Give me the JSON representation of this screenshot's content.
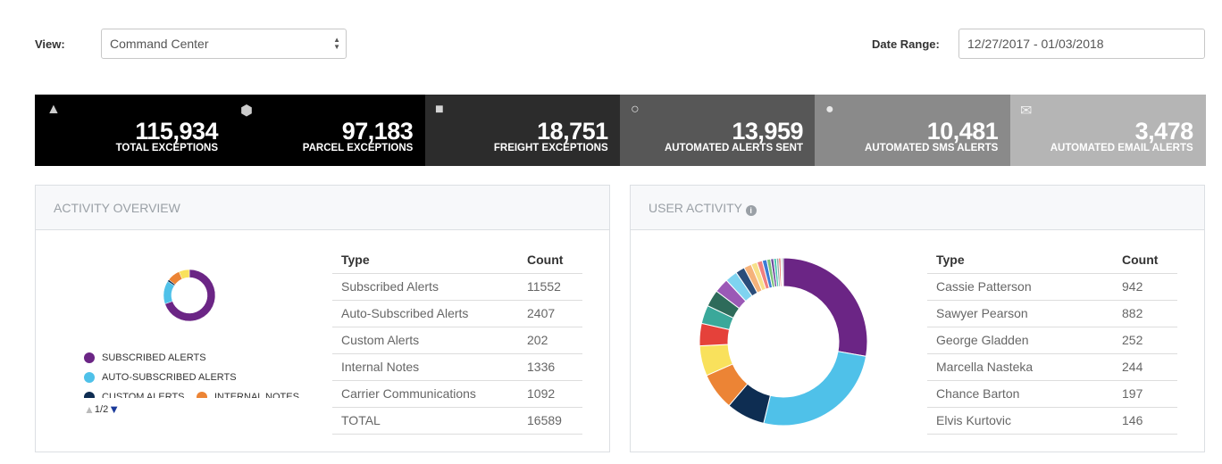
{
  "filters": {
    "view_label": "View:",
    "view_value": "Command Center",
    "date_label": "Date Range:",
    "date_value": "12/27/2017 - 01/03/2018"
  },
  "kpis": [
    {
      "value": "115,934",
      "label": "TOTAL EXCEPTIONS",
      "color": "#000000"
    },
    {
      "value": "97,183",
      "label": "PARCEL EXCEPTIONS",
      "color": "#000000"
    },
    {
      "value": "18,751",
      "label": "FREIGHT EXCEPTIONS",
      "color": "#2c2c2c"
    },
    {
      "value": "13,959",
      "label": "AUTOMATED ALERTS SENT",
      "color": "#575757"
    },
    {
      "value": "10,481",
      "label": "AUTOMATED SMS ALERTS",
      "color": "#8a8a8a"
    },
    {
      "value": "3,478",
      "label": "AUTOMATED EMAIL ALERTS",
      "color": "#b5b5b5"
    }
  ],
  "activity": {
    "title": "ACTIVITY OVERVIEW",
    "header": [
      "Type",
      "Count"
    ],
    "rows": [
      [
        "Subscribed Alerts",
        11552
      ],
      [
        "Auto-Subscribed Alerts",
        2407
      ],
      [
        "Custom Alerts",
        202
      ],
      [
        "Internal Notes",
        1336
      ],
      [
        "Carrier Communications",
        1092
      ]
    ],
    "total": [
      "TOTAL",
      16589
    ],
    "colors": [
      "#6b2585",
      "#4fc1e9",
      "#0e2d52",
      "#ec8435",
      "#f9e15c"
    ],
    "legend": [
      "SUBSCRIBED ALERTS",
      "AUTO-SUBSCRIBED ALERTS",
      "CUSTOM ALERTS",
      "INTERNAL NOTES"
    ],
    "pager": "1/2"
  },
  "user_activity": {
    "title": "USER ACTIVITY",
    "header": [
      "Type",
      "Count"
    ],
    "rows": [
      [
        "Cassie Patterson",
        942
      ],
      [
        "Sawyer Pearson",
        882
      ],
      [
        "George Gladden",
        252
      ],
      [
        "Marcella Nasteka",
        244
      ],
      [
        "Chance Barton",
        197
      ],
      [
        "Elvis Kurtovic",
        146
      ]
    ],
    "colors": [
      "#6b2585",
      "#4fc1e9",
      "#0e2d52",
      "#ec8435",
      "#f9e15c",
      "#e5413a"
    ],
    "other_values": [
      120,
      110,
      95,
      80,
      60,
      50,
      40,
      35,
      30,
      25,
      20,
      18,
      15,
      12,
      10,
      8
    ],
    "other_colors": [
      "#3aa89a",
      "#2e6b5a",
      "#9b59b6",
      "#7fd3f0",
      "#2a4d7a",
      "#f5b27a",
      "#f7e08a",
      "#f08080",
      "#3a7bd5",
      "#7cc47a",
      "#6d4c9f",
      "#48c9b0",
      "#95a5a6",
      "#e74c3c",
      "#cccccc",
      "#34495e"
    ]
  }
}
